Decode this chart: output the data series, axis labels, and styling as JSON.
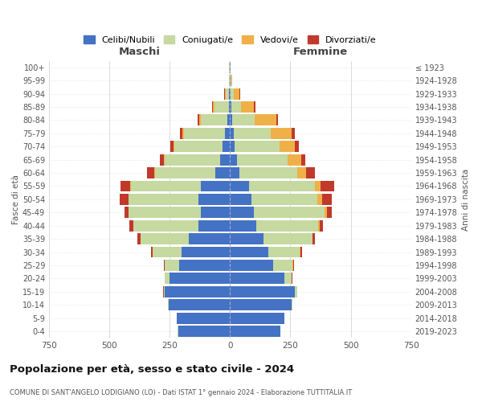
{
  "age_groups": [
    "0-4",
    "5-9",
    "10-14",
    "15-19",
    "20-24",
    "25-29",
    "30-34",
    "35-39",
    "40-44",
    "45-49",
    "50-54",
    "55-59",
    "60-64",
    "65-69",
    "70-74",
    "75-79",
    "80-84",
    "85-89",
    "90-94",
    "95-99",
    "100+"
  ],
  "birth_years": [
    "2019-2023",
    "2014-2018",
    "2009-2013",
    "2004-2008",
    "1999-2003",
    "1994-1998",
    "1989-1993",
    "1984-1988",
    "1979-1983",
    "1974-1978",
    "1969-1973",
    "1964-1968",
    "1959-1963",
    "1954-1958",
    "1949-1953",
    "1944-1948",
    "1939-1943",
    "1934-1938",
    "1929-1933",
    "1924-1928",
    "≤ 1923"
  ],
  "males": {
    "celibe": [
      215,
      220,
      255,
      270,
      250,
      210,
      200,
      170,
      130,
      120,
      130,
      120,
      60,
      40,
      30,
      20,
      10,
      5,
      3,
      2,
      2
    ],
    "coniugato": [
      1,
      1,
      2,
      5,
      20,
      60,
      120,
      200,
      270,
      300,
      290,
      290,
      250,
      230,
      200,
      170,
      110,
      60,
      15,
      3,
      1
    ],
    "vedovo": [
      0,
      0,
      0,
      0,
      0,
      0,
      0,
      1,
      1,
      2,
      2,
      4,
      4,
      5,
      5,
      8,
      8,
      5,
      3,
      0,
      0
    ],
    "divorziato": [
      0,
      0,
      0,
      1,
      2,
      4,
      8,
      12,
      15,
      15,
      35,
      40,
      30,
      15,
      12,
      10,
      5,
      4,
      2,
      0,
      0
    ]
  },
  "females": {
    "nubile": [
      210,
      225,
      255,
      270,
      225,
      180,
      160,
      140,
      110,
      100,
      90,
      80,
      40,
      30,
      20,
      15,
      8,
      5,
      3,
      2,
      1
    ],
    "coniugata": [
      0,
      1,
      2,
      8,
      30,
      80,
      130,
      200,
      255,
      290,
      270,
      270,
      240,
      210,
      185,
      155,
      95,
      40,
      12,
      2,
      0
    ],
    "vedova": [
      0,
      0,
      0,
      0,
      0,
      1,
      2,
      3,
      5,
      10,
      20,
      25,
      35,
      55,
      65,
      85,
      90,
      55,
      25,
      5,
      1
    ],
    "divorziata": [
      0,
      0,
      0,
      1,
      2,
      3,
      6,
      10,
      15,
      20,
      40,
      55,
      35,
      18,
      15,
      12,
      5,
      4,
      2,
      0,
      0
    ]
  },
  "colors": {
    "celibe": "#4472c4",
    "coniugato": "#c5d9a0",
    "vedovo": "#f0b048",
    "divorziato": "#c0392b"
  },
  "title": "Popolazione per età, sesso e stato civile - 2024",
  "subtitle": "COMUNE DI SANT'ANGELO LODIGIANO (LO) - Dati ISTAT 1° gennaio 2024 - Elaborazione TUTTITALIA.IT",
  "xlabel_left": "Maschi",
  "xlabel_right": "Femmine",
  "ylabel_left": "Fasce di età",
  "ylabel_right": "Anni di nascita",
  "legend_labels": [
    "Celibi/Nubili",
    "Coniugati/e",
    "Vedovi/e",
    "Divorziati/e"
  ],
  "xlim": 750,
  "background": "#ffffff"
}
